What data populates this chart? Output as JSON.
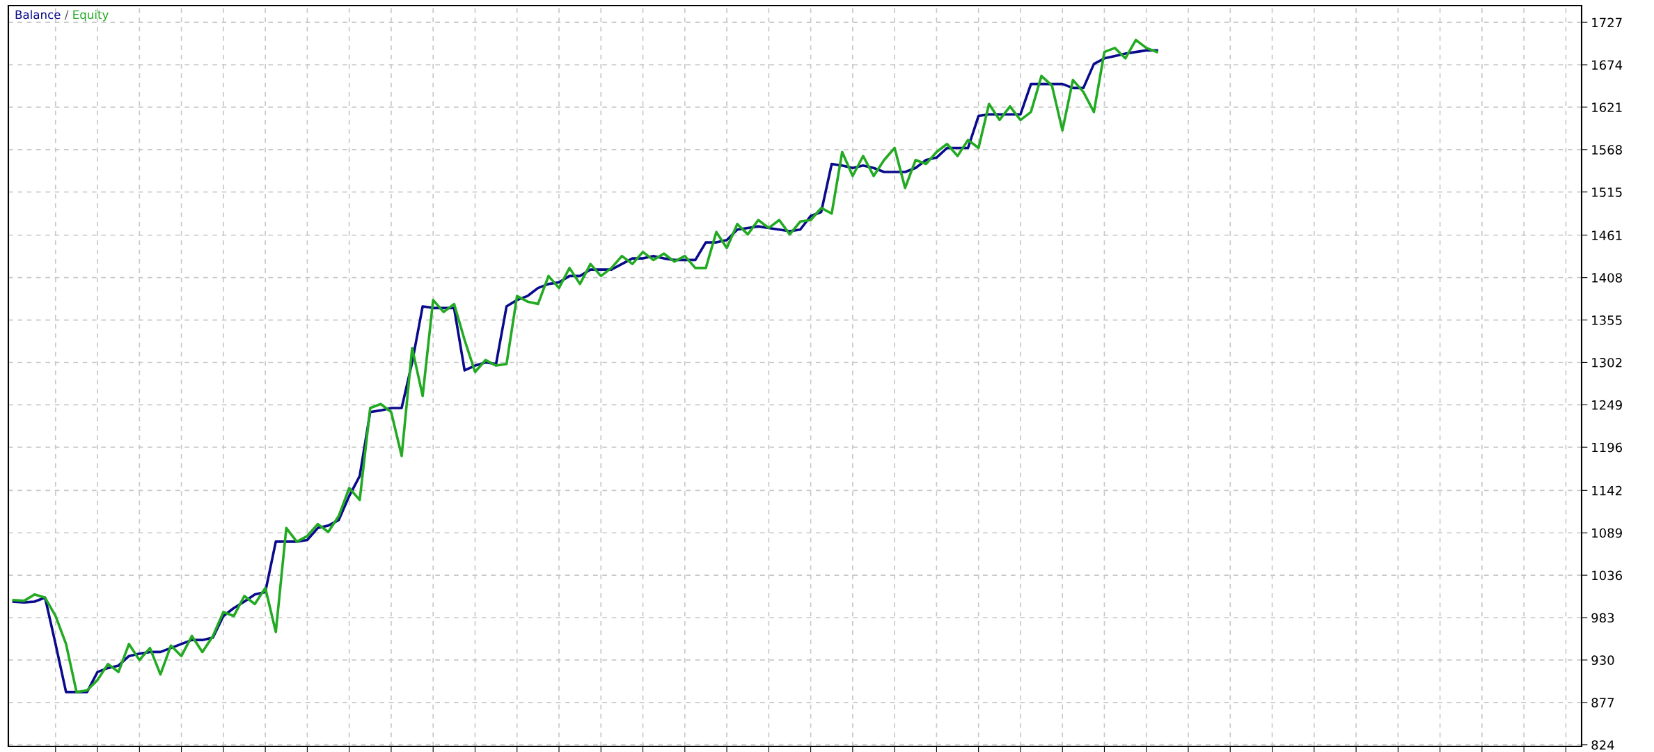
{
  "chart_data": {
    "type": "line",
    "categories": [
      null,
      null,
      null,
      null,
      null,
      null,
      null,
      null,
      null,
      null,
      null,
      null,
      null,
      null,
      null,
      null,
      null,
      null,
      null,
      null,
      null,
      null,
      null,
      null,
      null,
      null,
      null,
      null,
      null,
      null,
      null,
      null,
      null,
      null,
      null,
      null,
      null,
      null,
      null,
      null,
      null,
      null,
      null,
      null,
      null,
      null,
      null,
      null,
      null,
      null,
      null,
      null,
      null,
      null,
      null,
      null,
      null,
      null,
      null,
      null,
      null,
      null,
      null,
      null,
      null,
      null,
      null,
      null,
      null,
      null,
      null,
      null,
      null,
      null,
      null,
      null,
      null,
      null,
      null,
      null,
      null,
      null,
      null,
      null,
      null,
      null,
      null,
      null,
      null,
      null,
      null,
      null,
      null,
      null,
      null,
      null,
      null,
      null,
      null,
      null,
      null,
      null,
      null,
      null,
      null,
      null,
      null,
      null,
      null,
      null,
      null,
      null,
      null,
      null,
      null,
      null,
      null,
      null,
      null,
      null,
      null,
      null,
      null,
      null,
      null,
      null,
      null,
      null,
      null,
      null,
      null,
      null,
      null,
      null,
      null,
      null,
      null,
      null,
      null,
      null,
      null,
      null,
      null,
      null,
      null,
      null,
      null,
      null,
      null,
      null
    ],
    "series": [
      {
        "name": "Balance",
        "color": "#0a0a8c",
        "values": [
          1003,
          1002,
          1003,
          1008,
          950,
          890,
          890,
          890,
          915,
          920,
          923,
          935,
          938,
          940,
          940,
          945,
          950,
          955,
          955,
          958,
          985,
          995,
          1003,
          1012,
          1015,
          1078,
          1078,
          1078,
          1080,
          1095,
          1098,
          1105,
          1135,
          1160,
          1240,
          1242,
          1245,
          1245,
          1302,
          1372,
          1370,
          1370,
          1370,
          1292,
          1298,
          1302,
          1300,
          1372,
          1380,
          1385,
          1395,
          1400,
          1402,
          1410,
          1410,
          1418,
          1418,
          1418,
          1425,
          1432,
          1432,
          1435,
          1432,
          1430,
          1430,
          1430,
          1452,
          1452,
          1455,
          1468,
          1470,
          1472,
          1470,
          1468,
          1466,
          1468,
          1485,
          1490,
          1550,
          1548,
          1545,
          1548,
          1545,
          1540,
          1540,
          1540,
          1545,
          1555,
          1558,
          1570,
          1570,
          1570,
          1610,
          1612,
          1612,
          1612,
          1612,
          1650,
          1650,
          1650,
          1650,
          1645,
          1645,
          1675,
          1682,
          1685,
          1688,
          1690,
          1692,
          1692,
          null,
          null,
          null,
          null,
          null,
          null,
          null,
          null,
          null,
          null,
          null,
          null,
          null,
          null,
          null,
          null,
          null,
          null,
          null,
          null,
          null,
          null,
          null,
          null,
          null,
          null,
          null,
          null,
          null,
          null,
          null,
          null,
          null,
          null,
          null,
          null,
          null,
          null,
          null,
          null
        ]
      },
      {
        "name": "Equity",
        "color": "#22aa22",
        "values": [
          1005,
          1004,
          1012,
          1008,
          985,
          950,
          890,
          892,
          905,
          925,
          915,
          950,
          930,
          945,
          912,
          948,
          935,
          960,
          940,
          960,
          990,
          985,
          1010,
          1000,
          1020,
          965,
          1095,
          1078,
          1085,
          1100,
          1090,
          1110,
          1145,
          1130,
          1245,
          1250,
          1240,
          1185,
          1320,
          1260,
          1380,
          1365,
          1375,
          1330,
          1290,
          1305,
          1298,
          1300,
          1385,
          1378,
          1375,
          1410,
          1395,
          1420,
          1400,
          1425,
          1410,
          1420,
          1435,
          1425,
          1440,
          1430,
          1438,
          1428,
          1435,
          1420,
          1420,
          1465,
          1445,
          1475,
          1462,
          1480,
          1470,
          1480,
          1462,
          1478,
          1480,
          1495,
          1488,
          1565,
          1535,
          1560,
          1535,
          1555,
          1570,
          1520,
          1555,
          1550,
          1565,
          1575,
          1560,
          1580,
          1570,
          1625,
          1605,
          1622,
          1605,
          1615,
          1660,
          1648,
          1592,
          1655,
          1640,
          1615,
          1690,
          1695,
          1682,
          1705,
          1695,
          1690,
          null,
          null,
          null,
          null,
          null,
          null,
          null,
          null,
          null,
          null,
          null,
          null,
          null,
          null,
          null,
          null,
          null,
          null,
          null,
          null,
          null,
          null,
          null,
          null,
          null,
          null,
          null,
          null,
          null,
          null,
          null,
          null,
          null,
          null,
          null,
          null,
          null,
          null,
          null,
          null
        ]
      }
    ],
    "annotations": [
      "/"
    ],
    "ylim": [
      822,
      1748
    ],
    "yticks": [
      824,
      877,
      930,
      983,
      1036,
      1089,
      1142,
      1196,
      1249,
      1302,
      1355,
      1408,
      1461,
      1515,
      1568,
      1621,
      1674,
      1727
    ],
    "grid": true,
    "legend": "top left",
    "tick_labels": "y",
    "line_style": "solid",
    "marker": "none"
  }
}
